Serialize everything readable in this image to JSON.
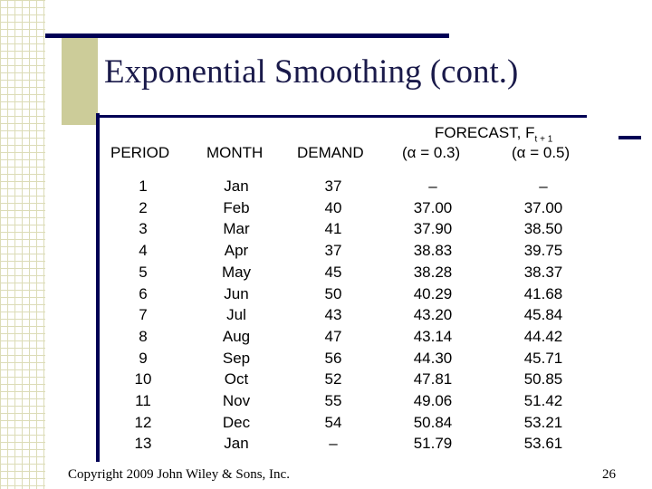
{
  "slide": {
    "title": "Exponential Smoothing (cont.)",
    "copyright": "Copyright 2009 John Wiley & Sons, Inc.",
    "page_number": "26"
  },
  "table": {
    "headers": {
      "period": "PERIOD",
      "month": "MONTH",
      "demand": "DEMAND",
      "forecast": "FORECAST, F",
      "forecast_sub": "t + 1",
      "alpha1": "(α = 0.3)",
      "alpha2": "(α = 0.5)"
    },
    "periods": [
      "1",
      "2",
      "3",
      "4",
      "5",
      "6",
      "7",
      "8",
      "9",
      "10",
      "11",
      "12",
      "13"
    ],
    "months": [
      "Jan",
      "Feb",
      "Mar",
      "Apr",
      "May",
      "Jun",
      "Jul",
      "Aug",
      "Sep",
      "Oct",
      "Nov",
      "Dec",
      "Jan"
    ],
    "demand": [
      "37",
      "40",
      "41",
      "37",
      "45",
      "50",
      "43",
      "47",
      "56",
      "52",
      "55",
      "54",
      "–"
    ],
    "forecast_a03": [
      "–",
      "37.00",
      "37.90",
      "38.83",
      "38.28",
      "40.29",
      "43.20",
      "43.14",
      "44.30",
      "47.81",
      "49.06",
      "50.84",
      "51.79"
    ],
    "forecast_a05": [
      "–",
      "37.00",
      "38.50",
      "39.75",
      "38.37",
      "41.68",
      "45.84",
      "44.42",
      "45.71",
      "50.85",
      "51.42",
      "53.21",
      "53.61"
    ]
  }
}
